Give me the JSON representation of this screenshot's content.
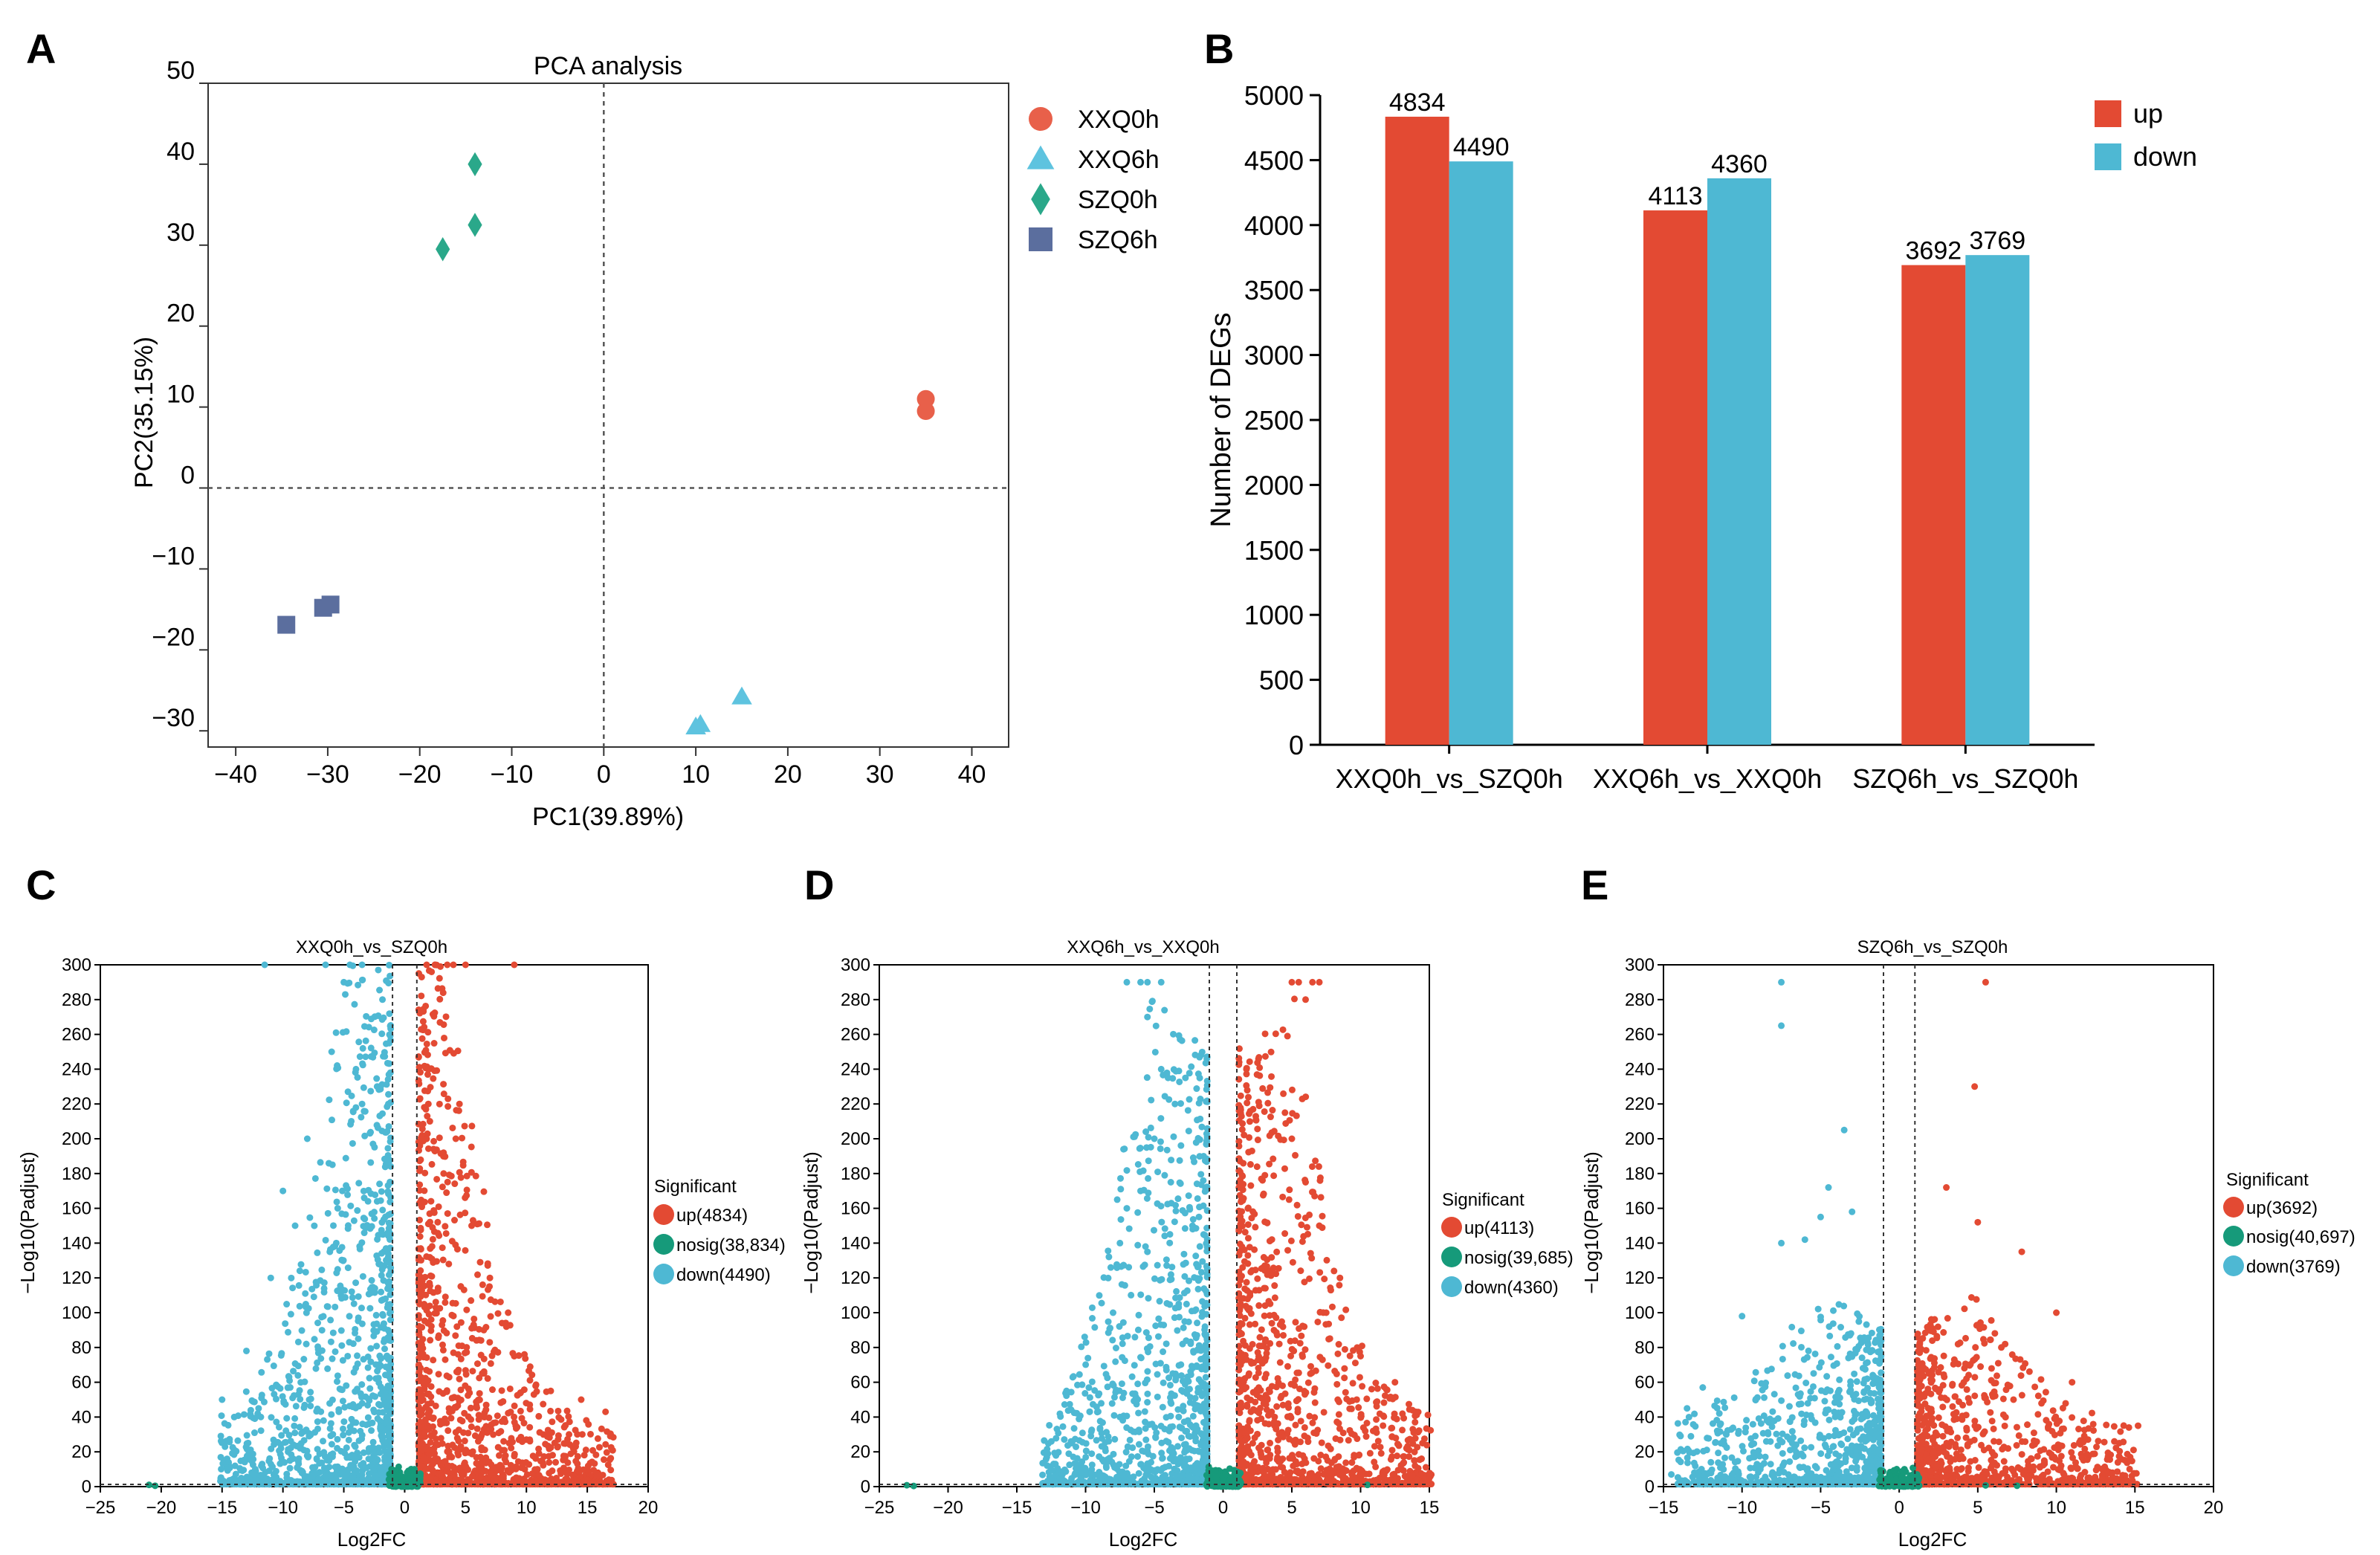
{
  "colors": {
    "up": "#E34A33",
    "down": "#4EB8D3",
    "nosig": "#169A7A",
    "xxq0h": "#E8604A",
    "xxq6h": "#5EC3DF",
    "szq0h": "#2AA88A",
    "szq6h": "#5B6E9E"
  },
  "panel_letters": {
    "a": "A",
    "b": "B",
    "c": "C",
    "d": "D",
    "e": "E"
  },
  "chart_data": [
    {
      "id": "A",
      "type": "scatter",
      "title": "PCA analysis",
      "xlabel": "PC1(39.89%)",
      "ylabel": "PC2(35.15%)",
      "xlim": [
        -43,
        44
      ],
      "ylim": [
        -32,
        50
      ],
      "xticks": [
        -40,
        -30,
        -20,
        -10,
        0,
        10,
        20,
        30,
        40
      ],
      "yticks": [
        -30,
        -20,
        -10,
        0,
        10,
        20,
        30,
        40,
        50
      ],
      "grid": false,
      "reference_lines": {
        "x": 0,
        "y": 0
      },
      "legend_position": "right",
      "series": [
        {
          "name": "XXQ0h",
          "marker": "circle",
          "color_key": "xxq0h",
          "points": [
            [
              35,
              11
            ],
            [
              35,
              9.5
            ]
          ]
        },
        {
          "name": "XXQ6h",
          "marker": "triangle",
          "color_key": "xxq6h",
          "points": [
            [
              10,
              -29.5
            ],
            [
              10.5,
              -29.2
            ],
            [
              15,
              -25.8
            ]
          ]
        },
        {
          "name": "SZQ0h",
          "marker": "diamond",
          "color_key": "szq0h",
          "points": [
            [
              -14,
              40
            ],
            [
              -14,
              32.5
            ],
            [
              -17.5,
              29.5
            ]
          ]
        },
        {
          "name": "SZQ6h",
          "marker": "square",
          "color_key": "szq6h",
          "points": [
            [
              -34.5,
              -16.9
            ],
            [
              -30.5,
              -14.8
            ],
            [
              -29.7,
              -14.4
            ]
          ]
        }
      ]
    },
    {
      "id": "B",
      "type": "bar",
      "xlabel": "",
      "ylabel": "Number of DEGs",
      "ylim": [
        0,
        5000
      ],
      "yticks": [
        0,
        500,
        1000,
        1500,
        2000,
        2500,
        3000,
        3500,
        4000,
        4500,
        5000
      ],
      "categories": [
        "XXQ0h_vs_SZQ0h",
        "XXQ6h_vs_XXQ0h",
        "SZQ6h_vs_SZQ0h"
      ],
      "legend_position": "top-right",
      "series": [
        {
          "name": "up",
          "color_key": "up",
          "values": [
            4834,
            4113,
            3692
          ]
        },
        {
          "name": "down",
          "color_key": "down",
          "values": [
            4490,
            4360,
            3769
          ]
        }
      ]
    },
    {
      "id": "C",
      "type": "scatter",
      "title": "XXQ0h_vs_SZQ0h",
      "xlabel": "Log2FC",
      "ylabel": "−Log10(Padjust)",
      "xlim": [
        -25,
        20
      ],
      "ylim": [
        0,
        300
      ],
      "xticks": [
        -25,
        -20,
        -15,
        -10,
        -5,
        0,
        5,
        10,
        15,
        20
      ],
      "yticks": [
        0,
        20,
        40,
        60,
        80,
        100,
        120,
        140,
        160,
        180,
        200,
        220,
        240,
        260,
        280,
        300
      ],
      "fc_threshold": 1,
      "p_line": 1.3,
      "legend_title": "Significant",
      "legend": [
        "up(4834)",
        "nosig(38,834)",
        "down(4490)"
      ],
      "envelope": {
        "up_x": [
          1,
          3,
          5,
          8,
          12,
          17
        ],
        "up_y": [
          300,
          300,
          240,
          100,
          50,
          30
        ],
        "down_x": [
          -1,
          -3,
          -5,
          -8,
          -12,
          -15
        ],
        "down_y": [
          300,
          300,
          300,
          150,
          60,
          40
        ]
      },
      "highlight": {
        "up": [
          [
            2.5,
            300
          ],
          [
            3.5,
            300
          ],
          [
            4,
            300
          ],
          [
            5,
            300
          ],
          [
            9,
            300
          ],
          [
            4.5,
            220
          ],
          [
            4.2,
            200
          ],
          [
            3.2,
            180
          ],
          [
            5.5,
            150
          ],
          [
            7,
            120
          ],
          [
            8.5,
            100
          ],
          [
            6.5,
            90
          ],
          [
            9,
            75
          ],
          [
            12,
            55
          ],
          [
            14.5,
            50
          ],
          [
            16.5,
            43
          ],
          [
            13.5,
            30
          ]
        ],
        "down": [
          [
            -11.5,
            300
          ],
          [
            -6.5,
            300
          ],
          [
            -4.5,
            300
          ],
          [
            -3.5,
            300
          ],
          [
            -5,
            290
          ],
          [
            -6,
            250
          ],
          [
            -4,
            240
          ],
          [
            -3.5,
            220
          ],
          [
            -8,
            200
          ],
          [
            -10,
            170
          ],
          [
            -5.5,
            160
          ],
          [
            -9,
            150
          ],
          [
            -11,
            120
          ],
          [
            -13,
            78
          ],
          [
            -15,
            50
          ],
          [
            -12,
            45
          ],
          [
            -14,
            40
          ]
        ],
        "nosig": [
          [
            -21,
            1
          ],
          [
            -20.5,
            0.5
          ],
          [
            -0.5,
            6
          ],
          [
            0.5,
            5
          ],
          [
            0.2,
            8
          ],
          [
            -0.2,
            3
          ]
        ]
      },
      "n_points": {
        "up": 1300,
        "down": 1300,
        "nosig": 160
      }
    },
    {
      "id": "D",
      "type": "scatter",
      "title": "XXQ6h_vs_XXQ0h",
      "xlabel": "Log2FC",
      "ylabel": "−Log10(Padjust)",
      "xlim": [
        -25,
        15
      ],
      "ylim": [
        0,
        300
      ],
      "xticks": [
        -25,
        -20,
        -15,
        -10,
        -5,
        0,
        5,
        10,
        15
      ],
      "yticks": [
        0,
        20,
        40,
        60,
        80,
        100,
        120,
        140,
        160,
        180,
        200,
        220,
        240,
        260,
        280,
        300
      ],
      "fc_threshold": 1,
      "p_line": 1.3,
      "legend_title": "Significant",
      "legend": [
        "up(4113)",
        "nosig(39,685)",
        "down(4360)"
      ],
      "envelope": {
        "up_x": [
          1,
          3,
          5,
          8,
          11,
          15
        ],
        "up_y": [
          250,
          260,
          290,
          130,
          60,
          40
        ],
        "down_x": [
          -1,
          -3,
          -5,
          -8,
          -11,
          -13
        ],
        "down_y": [
          250,
          260,
          290,
          160,
          60,
          30
        ]
      },
      "highlight": {
        "up": [
          [
            5,
            290
          ],
          [
            5.5,
            290
          ],
          [
            6.5,
            290
          ],
          [
            7,
            290
          ],
          [
            6,
            280
          ],
          [
            4.5,
            215
          ],
          [
            5,
            200
          ],
          [
            6,
            175
          ],
          [
            4.8,
            165
          ],
          [
            7,
            150
          ],
          [
            8.5,
            120
          ],
          [
            7.5,
            100
          ],
          [
            10,
            75
          ],
          [
            12.5,
            60
          ],
          [
            14,
            43
          ],
          [
            13.8,
            33
          ],
          [
            14.5,
            25
          ]
        ],
        "down": [
          [
            -7,
            290
          ],
          [
            -6,
            290
          ],
          [
            -5.5,
            290
          ],
          [
            -4.5,
            290
          ],
          [
            -5.5,
            270
          ],
          [
            -4.5,
            240
          ],
          [
            -4,
            235
          ],
          [
            -3.5,
            220
          ],
          [
            -5,
            200
          ],
          [
            -3.8,
            175
          ],
          [
            -6,
            170
          ],
          [
            -7,
            160
          ],
          [
            -7.5,
            140
          ],
          [
            -5.5,
            135
          ],
          [
            -8,
            100
          ],
          [
            -11,
            25
          ],
          [
            -7.5,
            40
          ]
        ],
        "nosig": [
          [
            -23,
            0.8
          ],
          [
            -22.5,
            0.4
          ],
          [
            -0.5,
            5
          ],
          [
            0.5,
            4
          ],
          [
            0.2,
            7
          ],
          [
            10.5,
            1
          ],
          [
            -0.3,
            2
          ]
        ]
      },
      "n_points": {
        "up": 1200,
        "down": 1200,
        "nosig": 160
      }
    },
    {
      "id": "E",
      "type": "scatter",
      "title": "SZQ6h_vs_SZQ0h",
      "xlabel": "Log2FC",
      "ylabel": "−Log10(Padjust)",
      "xlim": [
        -15,
        20
      ],
      "ylim": [
        0,
        300
      ],
      "xticks": [
        -15,
        -10,
        -5,
        0,
        5,
        10,
        15,
        20
      ],
      "yticks": [
        0,
        20,
        40,
        60,
        80,
        100,
        120,
        140,
        160,
        180,
        200,
        220,
        240,
        260,
        280,
        300
      ],
      "fc_threshold": 1,
      "p_line": 1.3,
      "legend_title": "Significant",
      "legend": [
        "up(3692)",
        "nosig(40,697)",
        "down(3769)"
      ],
      "envelope": {
        "up_x": [
          1,
          3,
          5,
          8,
          11,
          15
        ],
        "up_y": [
          90,
          100,
          110,
          70,
          45,
          35
        ],
        "down_x": [
          -1,
          -3,
          -5,
          -8,
          -11,
          -14
        ],
        "down_y": [
          90,
          100,
          110,
          80,
          50,
          40
        ]
      },
      "highlight": {
        "up": [
          [
            5.5,
            290
          ],
          [
            4.8,
            230
          ],
          [
            3,
            172
          ],
          [
            5,
            152
          ],
          [
            7.8,
            135
          ],
          [
            10,
            100
          ],
          [
            6.5,
            80
          ],
          [
            11,
            60
          ],
          [
            15.2,
            35
          ],
          [
            14,
            25
          ]
        ],
        "down": [
          [
            -7.5,
            290
          ],
          [
            -7.5,
            265
          ],
          [
            -3.5,
            205
          ],
          [
            -4.5,
            172
          ],
          [
            -5,
            155
          ],
          [
            -3,
            158
          ],
          [
            -6,
            142
          ],
          [
            -7.5,
            140
          ],
          [
            -10,
            98
          ],
          [
            -12.5,
            57
          ],
          [
            -13.5,
            45
          ],
          [
            -11,
            30
          ],
          [
            -14.5,
            7
          ]
        ],
        "nosig": [
          [
            -0.5,
            4
          ],
          [
            0.5,
            3
          ],
          [
            0.2,
            6
          ],
          [
            -0.2,
            2
          ],
          [
            5.5,
            0.7
          ],
          [
            7.5,
            0.5
          ]
        ]
      },
      "n_points": {
        "up": 1000,
        "down": 1000,
        "nosig": 150
      }
    }
  ]
}
